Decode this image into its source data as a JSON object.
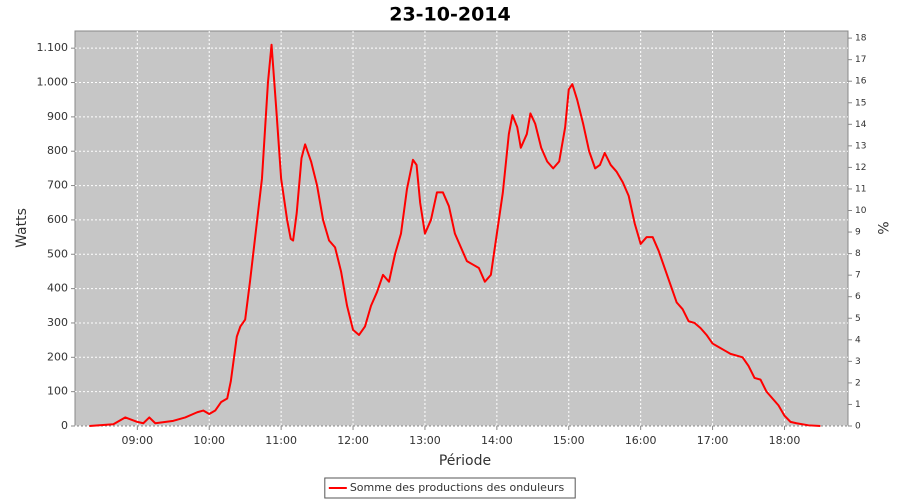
{
  "chart_data": {
    "type": "line",
    "title": "23-10-2014",
    "x_label": "Période",
    "y_label": "Watts",
    "y2_label": "%",
    "xlim": [
      488,
      1133
    ],
    "xticks": [
      {
        "value": 540,
        "label": "09:00"
      },
      {
        "value": 600,
        "label": "10:00"
      },
      {
        "value": 660,
        "label": "11:00"
      },
      {
        "value": 720,
        "label": "12:00"
      },
      {
        "value": 780,
        "label": "13:00"
      },
      {
        "value": 840,
        "label": "14:00"
      },
      {
        "value": 900,
        "label": "15:00"
      },
      {
        "value": 960,
        "label": "16:00"
      },
      {
        "value": 1020,
        "label": "17:00"
      },
      {
        "value": 1080,
        "label": "18:00"
      }
    ],
    "ylim": [
      0,
      1150
    ],
    "yticks": [
      0,
      100,
      200,
      300,
      400,
      500,
      600,
      700,
      800,
      900,
      {
        "value": 1000,
        "label": "1.000"
      },
      {
        "value": 1100,
        "label": "1.100"
      }
    ],
    "y2lim": [
      0,
      18.33
    ],
    "y2ticks": [
      0,
      1,
      2,
      3,
      4,
      5,
      6,
      7,
      8,
      9,
      10,
      11,
      12,
      13,
      14,
      15,
      16,
      17,
      18
    ],
    "grid": true,
    "legend": "bottom",
    "series": [
      {
        "name": "Somme des productions des onduleurs",
        "color": "#ff0000",
        "x": [
          500,
          520,
          530,
          540,
          545,
          550,
          555,
          570,
          580,
          590,
          595,
          600,
          605,
          610,
          615,
          618,
          623,
          626,
          630,
          634,
          638,
          644,
          649,
          652,
          656,
          660,
          665,
          668,
          670,
          673,
          677,
          680,
          685,
          690,
          695,
          700,
          705,
          710,
          715,
          720,
          725,
          730,
          735,
          740,
          745,
          750,
          755,
          760,
          765,
          770,
          773,
          776,
          780,
          785,
          790,
          795,
          800,
          805,
          810,
          815,
          820,
          825,
          830,
          835,
          840,
          845,
          850,
          853,
          857,
          860,
          865,
          868,
          872,
          877,
          882,
          887,
          892,
          897,
          900,
          903,
          907,
          912,
          917,
          922,
          926,
          930,
          935,
          940,
          945,
          950,
          955,
          960,
          965,
          970,
          975,
          980,
          985,
          990,
          995,
          1000,
          1005,
          1010,
          1015,
          1020,
          1025,
          1030,
          1035,
          1040,
          1045,
          1050,
          1055,
          1060,
          1065,
          1070,
          1075,
          1080,
          1085,
          1090,
          1100,
          1110
        ],
        "values": [
          0,
          5,
          25,
          12,
          8,
          25,
          8,
          15,
          25,
          40,
          45,
          35,
          45,
          70,
          80,
          130,
          260,
          290,
          310,
          420,
          540,
          720,
          1000,
          1110,
          920,
          720,
          600,
          545,
          540,
          620,
          780,
          820,
          770,
          700,
          600,
          540,
          520,
          450,
          350,
          280,
          265,
          290,
          350,
          390,
          440,
          420,
          500,
          560,
          690,
          775,
          760,
          650,
          560,
          600,
          680,
          680,
          640,
          560,
          520,
          480,
          470,
          460,
          420,
          440,
          560,
          680,
          850,
          905,
          870,
          810,
          850,
          910,
          880,
          810,
          770,
          750,
          770,
          870,
          980,
          995,
          950,
          880,
          800,
          750,
          760,
          795,
          760,
          740,
          710,
          670,
          590,
          530,
          550,
          550,
          510,
          460,
          410,
          360,
          340,
          305,
          300,
          285,
          265,
          240,
          230,
          220,
          210,
          205,
          200,
          175,
          140,
          135,
          100,
          80,
          60,
          30,
          12,
          8,
          2,
          0
        ]
      }
    ]
  }
}
